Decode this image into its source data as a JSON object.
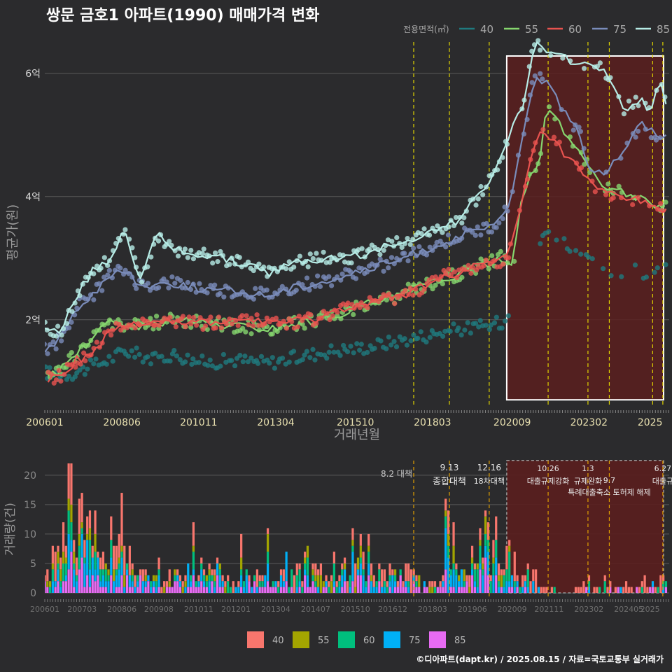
{
  "title": "쌍문 금호1 아파트(1990) 매매가격 변화",
  "credit": "©디아파트(dapt.kr) / 2025.08.15 / 자료=국토교통부 실거래가",
  "colors": {
    "background": "#2b2b2d",
    "grid": "#5a5a5a",
    "top_series": {
      "40": "#1f7a7e",
      "55": "#86d66e",
      "60": "#e8534f",
      "75": "#7a8cba",
      "85": "#b7ece6"
    },
    "bottom_series": {
      "40": "#f8766d",
      "55": "#a3a500",
      "60": "#00bf7d",
      "75": "#00b0f6",
      "85": "#e76bf3"
    },
    "policy_line": "#e0d400",
    "policy_line_bottom": "#e0a000",
    "highlight_fill": "#5a1e1e",
    "highlight_border": "#ffffff"
  },
  "chart_data": [
    {
      "type": "line",
      "title": "",
      "xlabel": "거래년월",
      "ylabel": "평균가(원)",
      "x_tick_labels": [
        "200601",
        "200806",
        "201011",
        "201304",
        "201510",
        "201803",
        "202009",
        "202302",
        "2025"
      ],
      "x_ticks": [
        2006.0,
        2008.42,
        2010.83,
        2013.25,
        2015.75,
        2018.17,
        2020.67,
        2023.08,
        2025.0
      ],
      "x_range": [
        2006.0,
        2025.6
      ],
      "y_ticks": [
        2,
        4,
        6
      ],
      "y_tick_labels": [
        "2억",
        "4억",
        "6억"
      ],
      "y_unit": "억원",
      "ylim": [
        0.6,
        6.6
      ],
      "legend_title": "전용면적(㎡)",
      "legend_position": "top-right",
      "policy_lines": [
        2017.58,
        2018.7,
        2019.95,
        2021.8,
        2023.05,
        2023.72,
        2025.08,
        2025.4
      ],
      "highlight_range": {
        "x": [
          2020.5,
          2025.6
        ],
        "y": [
          0.7,
          6.6
        ]
      },
      "series": [
        {
          "name": "40",
          "points": [
            [
              2006.0,
              1.15
            ],
            [
              2006.5,
              1.1
            ],
            [
              2007.0,
              1.15
            ],
            [
              2007.5,
              1.25
            ],
            [
              2008.0,
              1.35
            ],
            [
              2008.5,
              1.5
            ],
            [
              2009.5,
              1.35
            ],
            [
              2010.0,
              1.45
            ],
            [
              2011.0,
              1.3
            ],
            [
              2012.0,
              1.35
            ],
            [
              2013.0,
              1.3
            ],
            [
              2014.0,
              1.4
            ],
            [
              2015.0,
              1.5
            ],
            [
              2016.0,
              1.55
            ],
            [
              2017.0,
              1.65
            ],
            [
              2018.0,
              1.75
            ],
            [
              2019.0,
              1.85
            ],
            [
              2020.0,
              1.9
            ],
            [
              2020.5,
              2.0
            ],
            [
              2020.8,
              2.6
            ],
            [
              2021.3,
              3.0
            ],
            [
              2021.8,
              3.5
            ],
            [
              2023.5,
              2.8
            ],
            [
              2024.5,
              2.8
            ],
            [
              2025.0,
              2.7
            ],
            [
              2025.5,
              2.8
            ]
          ]
        },
        {
          "name": "55",
          "points": [
            [
              2006.1,
              1.05
            ],
            [
              2006.5,
              1.2
            ],
            [
              2007.0,
              1.45
            ],
            [
              2007.5,
              1.7
            ],
            [
              2008.0,
              1.95
            ],
            [
              2009.0,
              1.9
            ],
            [
              2010.0,
              2.0
            ],
            [
              2011.0,
              1.95
            ],
            [
              2012.0,
              1.9
            ],
            [
              2013.0,
              1.85
            ],
            [
              2014.0,
              1.95
            ],
            [
              2015.0,
              2.05
            ],
            [
              2016.0,
              2.25
            ],
            [
              2017.0,
              2.35
            ],
            [
              2017.5,
              2.5
            ],
            [
              2018.5,
              2.65
            ],
            [
              2019.5,
              2.85
            ],
            [
              2020.3,
              3.0
            ],
            [
              2020.7,
              2.95
            ],
            [
              2021.0,
              4.1
            ],
            [
              2021.5,
              4.5
            ],
            [
              2021.75,
              5.45
            ],
            [
              2023.5,
              4.2
            ],
            [
              2025.5,
              3.8
            ]
          ]
        },
        {
          "name": "60",
          "points": [
            [
              2006.1,
              1.05
            ],
            [
              2006.5,
              1.1
            ],
            [
              2007.0,
              1.35
            ],
            [
              2007.5,
              1.45
            ],
            [
              2008.0,
              1.8
            ],
            [
              2008.5,
              1.9
            ],
            [
              2009.5,
              2.0
            ],
            [
              2010.5,
              1.95
            ],
            [
              2011.5,
              1.95
            ],
            [
              2012.5,
              2.0
            ],
            [
              2013.5,
              1.95
            ],
            [
              2014.5,
              2.0
            ],
            [
              2015.5,
              2.2
            ],
            [
              2016.5,
              2.3
            ],
            [
              2017.5,
              2.45
            ],
            [
              2018.5,
              2.7
            ],
            [
              2019.5,
              2.85
            ],
            [
              2020.5,
              3.0
            ],
            [
              2020.9,
              3.7
            ],
            [
              2021.2,
              4.5
            ],
            [
              2021.6,
              5.1
            ],
            [
              2023.0,
              4.3
            ],
            [
              2023.3,
              4.1
            ],
            [
              2024.5,
              3.95
            ],
            [
              2025.5,
              3.8
            ]
          ]
        },
        {
          "name": "75",
          "points": [
            [
              2006.0,
              1.5
            ],
            [
              2006.5,
              1.7
            ],
            [
              2007.0,
              2.2
            ],
            [
              2007.5,
              2.4
            ],
            [
              2008.0,
              2.7
            ],
            [
              2008.5,
              2.8
            ],
            [
              2009.0,
              2.55
            ],
            [
              2010.0,
              2.6
            ],
            [
              2011.0,
              2.5
            ],
            [
              2012.0,
              2.45
            ],
            [
              2013.0,
              2.4
            ],
            [
              2014.0,
              2.55
            ],
            [
              2015.0,
              2.65
            ],
            [
              2016.0,
              2.8
            ],
            [
              2017.0,
              2.95
            ],
            [
              2018.0,
              3.15
            ],
            [
              2019.0,
              3.35
            ],
            [
              2020.0,
              3.5
            ],
            [
              2020.6,
              3.8
            ],
            [
              2021.0,
              5.0
            ],
            [
              2021.4,
              6.0
            ],
            [
              2021.8,
              5.8
            ],
            [
              2022.9,
              4.9
            ],
            [
              2023.0,
              4.5
            ],
            [
              2023.6,
              4.4
            ],
            [
              2024.3,
              4.85
            ],
            [
              2024.7,
              5.2
            ],
            [
              2025.2,
              5.0
            ],
            [
              2025.5,
              5.0
            ]
          ]
        },
        {
          "name": "85",
          "points": [
            [
              2006.0,
              1.85
            ],
            [
              2006.5,
              1.8
            ],
            [
              2007.0,
              2.4
            ],
            [
              2007.5,
              2.8
            ],
            [
              2008.0,
              2.95
            ],
            [
              2008.5,
              3.5
            ],
            [
              2009.0,
              2.6
            ],
            [
              2009.5,
              3.4
            ],
            [
              2010.0,
              3.15
            ],
            [
              2011.0,
              3.05
            ],
            [
              2012.0,
              2.95
            ],
            [
              2013.0,
              2.75
            ],
            [
              2014.0,
              2.95
            ],
            [
              2015.0,
              3.0
            ],
            [
              2016.0,
              3.05
            ],
            [
              2017.0,
              3.25
            ],
            [
              2018.0,
              3.4
            ],
            [
              2019.0,
              3.6
            ],
            [
              2020.0,
              4.3
            ],
            [
              2020.6,
              5.0
            ],
            [
              2021.0,
              5.5
            ],
            [
              2021.4,
              6.5
            ],
            [
              2021.8,
              6.3
            ],
            [
              2023.5,
              6.1
            ],
            [
              2024.2,
              5.4
            ],
            [
              2024.7,
              5.6
            ],
            [
              2025.0,
              5.4
            ],
            [
              2025.3,
              5.85
            ],
            [
              2025.5,
              5.5
            ]
          ]
        }
      ]
    },
    {
      "type": "bar",
      "title": "",
      "xlabel": "",
      "ylabel": "거래량(건)",
      "x_tick_labels": [
        "200601",
        "200703",
        "200806",
        "200908",
        "201011",
        "201201",
        "201304",
        "201407",
        "201510",
        "201612",
        "201803",
        "201906",
        "202009",
        "202111",
        "202302",
        "202405",
        "2025"
      ],
      "x_ticks": [
        2006.0,
        2007.17,
        2008.42,
        2009.58,
        2010.83,
        2012.0,
        2013.25,
        2014.5,
        2015.75,
        2016.92,
        2018.17,
        2019.42,
        2020.67,
        2021.83,
        2023.08,
        2024.33,
        2025.0
      ],
      "x_range": [
        2006.0,
        2025.6
      ],
      "y_ticks": [
        0,
        5,
        10,
        15,
        20
      ],
      "ylim": [
        0,
        22
      ],
      "stacked": true,
      "legend_position": "bottom",
      "highlight_range": {
        "x": [
          2020.5,
          2025.6
        ],
        "y": [
          0,
          22.5
        ]
      },
      "series_names": [
        "40",
        "55",
        "60",
        "75",
        "85"
      ],
      "volume_profile": [
        [
          2006.0,
          3
        ],
        [
          2006.4,
          6
        ],
        [
          2006.7,
          9
        ],
        [
          2007.0,
          14
        ],
        [
          2007.3,
          10
        ],
        [
          2007.6,
          5
        ],
        [
          2008.0,
          4
        ],
        [
          2008.4,
          8
        ],
        [
          2008.8,
          3
        ],
        [
          2009.3,
          2
        ],
        [
          2009.8,
          2
        ],
        [
          2010.5,
          3
        ],
        [
          2011.0,
          4
        ],
        [
          2011.5,
          3
        ],
        [
          2012.0,
          2
        ],
        [
          2012.5,
          2
        ],
        [
          2013.0,
          2
        ],
        [
          2013.5,
          3
        ],
        [
          2014.0,
          3
        ],
        [
          2014.5,
          3
        ],
        [
          2015.0,
          4
        ],
        [
          2015.5,
          4
        ],
        [
          2016.0,
          4
        ],
        [
          2016.5,
          3
        ],
        [
          2017.0,
          3
        ],
        [
          2017.5,
          3
        ],
        [
          2017.8,
          1
        ],
        [
          2018.3,
          2
        ],
        [
          2018.7,
          6
        ],
        [
          2019.0,
          2
        ],
        [
          2019.5,
          3
        ],
        [
          2019.9,
          5
        ],
        [
          2020.3,
          6
        ],
        [
          2020.6,
          5
        ],
        [
          2020.9,
          3
        ],
        [
          2021.3,
          2
        ],
        [
          2021.7,
          1
        ],
        [
          2022.3,
          0
        ],
        [
          2023.0,
          1
        ],
        [
          2023.5,
          1
        ],
        [
          2024.0,
          1
        ],
        [
          2024.5,
          1
        ],
        [
          2025.0,
          1
        ],
        [
          2025.5,
          2
        ]
      ],
      "spikes": [
        [
          2006.75,
          22,
          1
        ],
        [
          2006.85,
          22,
          0
        ],
        [
          2006.6,
          12,
          2
        ],
        [
          2007.1,
          16,
          4
        ],
        [
          2008.1,
          13,
          1
        ],
        [
          2008.4,
          17,
          3
        ],
        [
          2010.7,
          12,
          0
        ],
        [
          2012.2,
          10,
          3
        ],
        [
          2013.0,
          11,
          0
        ],
        [
          2015.9,
          10,
          1
        ],
        [
          2018.6,
          16,
          4
        ],
        [
          2018.7,
          14,
          4
        ],
        [
          2019.9,
          12,
          1
        ],
        [
          2020.2,
          13,
          0
        ],
        [
          2019.4,
          8,
          3
        ]
      ],
      "policies": [
        {
          "x": 2017.58,
          "date": "8.2",
          "name": "대책",
          "line": "8.2 대책"
        },
        {
          "x": 2018.7,
          "date": "9.13",
          "name": "종합대책"
        },
        {
          "x": 2019.95,
          "date": "12.16",
          "name": "18차대책"
        },
        {
          "x": 2021.8,
          "date": "10.26",
          "name": "대출규제강화"
        },
        {
          "x": 2023.05,
          "date": "1.3",
          "name": "규제완화"
        },
        {
          "x": 2023.72,
          "date": "9.7",
          "name": "특례대출축소 토허제 해제"
        },
        {
          "x": 2025.4,
          "date": "6.27",
          "name": "대출규"
        }
      ]
    }
  ]
}
